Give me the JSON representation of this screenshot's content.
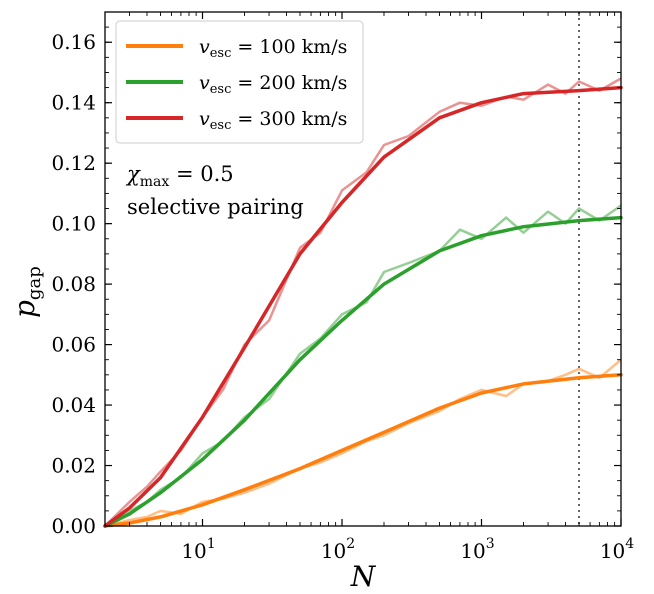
{
  "chart_data": {
    "type": "line",
    "xlabel": "N",
    "ylabel_main": "p",
    "ylabel_sub": "gap",
    "xscale": "log",
    "xlim": [
      2,
      10000
    ],
    "ylim": [
      0,
      0.17
    ],
    "yticks": [
      "0.00",
      "0.02",
      "0.04",
      "0.06",
      "0.08",
      "0.10",
      "0.12",
      "0.14",
      "0.16"
    ],
    "xticks": [
      {
        "base": "10",
        "exp": "1"
      },
      {
        "base": "10",
        "exp": "2"
      },
      {
        "base": "10",
        "exp": "3"
      },
      {
        "base": "10",
        "exp": "4"
      }
    ],
    "vline_x": 5000,
    "grid": false,
    "legend_position": "top-left",
    "annotation": {
      "line1_symbol": "χ",
      "line1_sub": "max",
      "line1_rest": " = 0.5",
      "line2": "selective pairing"
    },
    "series": [
      {
        "legend_var": "v",
        "legend_sub": "esc",
        "legend_value": " = 100 km/s",
        "color": "#ff7f0e",
        "smooth_x": [
          2,
          3,
          5,
          10,
          20,
          50,
          100,
          200,
          500,
          1000,
          2000,
          5000,
          10000
        ],
        "smooth_y": [
          0.0,
          0.001,
          0.003,
          0.007,
          0.012,
          0.019,
          0.025,
          0.031,
          0.039,
          0.044,
          0.047,
          0.049,
          0.05
        ],
        "noisy_x": [
          2,
          3,
          4,
          5,
          7,
          10,
          14,
          20,
          30,
          50,
          70,
          100,
          150,
          200,
          300,
          500,
          700,
          1000,
          1500,
          2000,
          3000,
          4000,
          5000,
          7000,
          10000
        ],
        "noisy_y": [
          0.0,
          0.002,
          0.003,
          0.005,
          0.004,
          0.008,
          0.009,
          0.011,
          0.014,
          0.019,
          0.021,
          0.024,
          0.028,
          0.03,
          0.034,
          0.038,
          0.042,
          0.045,
          0.043,
          0.047,
          0.048,
          0.05,
          0.052,
          0.049,
          0.055
        ]
      },
      {
        "legend_var": "v",
        "legend_sub": "esc",
        "legend_value": " = 200 km/s",
        "color": "#2ca02c",
        "smooth_x": [
          2,
          3,
          5,
          10,
          20,
          50,
          100,
          200,
          500,
          1000,
          2000,
          5000,
          10000
        ],
        "smooth_y": [
          0.0,
          0.004,
          0.011,
          0.022,
          0.035,
          0.055,
          0.068,
          0.08,
          0.091,
          0.096,
          0.099,
          0.101,
          0.102
        ],
        "noisy_x": [
          2,
          3,
          4,
          5,
          7,
          10,
          14,
          20,
          30,
          50,
          70,
          100,
          150,
          200,
          300,
          500,
          700,
          1000,
          1500,
          2000,
          3000,
          4000,
          5000,
          7000,
          10000
        ],
        "noisy_y": [
          0.0,
          0.005,
          0.008,
          0.012,
          0.016,
          0.024,
          0.028,
          0.036,
          0.042,
          0.057,
          0.062,
          0.07,
          0.074,
          0.084,
          0.087,
          0.091,
          0.098,
          0.095,
          0.102,
          0.097,
          0.104,
          0.1,
          0.105,
          0.101,
          0.106
        ]
      },
      {
        "legend_var": "v",
        "legend_sub": "esc",
        "legend_value": " = 300 km/s",
        "color": "#d62728",
        "smooth_x": [
          2,
          3,
          5,
          10,
          20,
          50,
          100,
          200,
          500,
          1000,
          2000,
          5000,
          10000
        ],
        "smooth_y": [
          0.0,
          0.006,
          0.016,
          0.036,
          0.059,
          0.09,
          0.107,
          0.122,
          0.135,
          0.14,
          0.143,
          0.144,
          0.145
        ],
        "noisy_x": [
          2,
          3,
          4,
          5,
          7,
          10,
          14,
          20,
          30,
          50,
          70,
          100,
          150,
          200,
          300,
          500,
          700,
          1000,
          1500,
          2000,
          3000,
          4000,
          5000,
          7000,
          10000
        ],
        "noisy_y": [
          0.0,
          0.008,
          0.013,
          0.018,
          0.025,
          0.036,
          0.045,
          0.06,
          0.068,
          0.092,
          0.097,
          0.111,
          0.117,
          0.126,
          0.129,
          0.137,
          0.14,
          0.139,
          0.142,
          0.141,
          0.146,
          0.143,
          0.147,
          0.144,
          0.148
        ]
      }
    ]
  }
}
